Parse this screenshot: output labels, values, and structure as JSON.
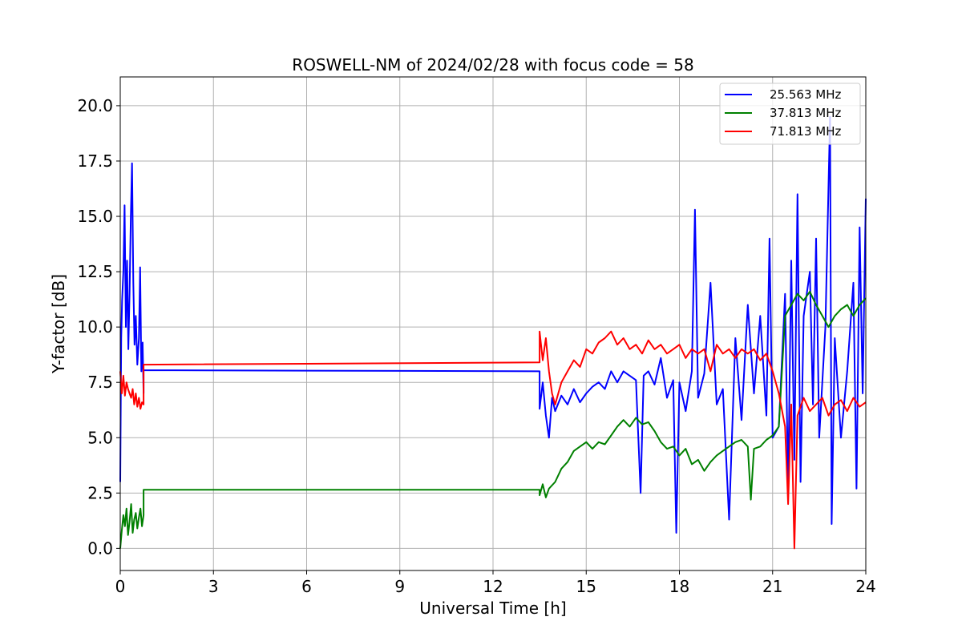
{
  "chart_data": {
    "type": "line",
    "title": "ROSWELL-NM of 2024/02/28 with focus code = 58",
    "xlabel": "Universal Time [h]",
    "ylabel": "Y-factor [dB]",
    "xlim": [
      0,
      24
    ],
    "ylim": [
      -1.0,
      21.3
    ],
    "xticks": [
      0,
      3,
      6,
      9,
      12,
      15,
      18,
      21,
      24
    ],
    "yticks": [
      0.0,
      2.5,
      5.0,
      7.5,
      10.0,
      12.5,
      15.0,
      17.5,
      20.0
    ],
    "xtick_labels": [
      "0",
      "3",
      "6",
      "9",
      "12",
      "15",
      "18",
      "21",
      "24"
    ],
    "ytick_labels": [
      "0.0",
      "2.5",
      "5.0",
      "7.5",
      "10.0",
      "12.5",
      "15.0",
      "17.5",
      "20.0"
    ],
    "grid": true,
    "legend_position": "top-right",
    "series": [
      {
        "name": "25.563 MHz",
        "color": "#0000ff",
        "points": [
          [
            0.0,
            3.0
          ],
          [
            0.03,
            9.5
          ],
          [
            0.06,
            11.2
          ],
          [
            0.1,
            12.5
          ],
          [
            0.14,
            15.5
          ],
          [
            0.18,
            10.0
          ],
          [
            0.22,
            13.0
          ],
          [
            0.26,
            9.0
          ],
          [
            0.3,
            11.5
          ],
          [
            0.34,
            15.0
          ],
          [
            0.38,
            17.4
          ],
          [
            0.42,
            12.0
          ],
          [
            0.46,
            9.2
          ],
          [
            0.5,
            10.5
          ],
          [
            0.55,
            8.3
          ],
          [
            0.6,
            9.5
          ],
          [
            0.64,
            12.7
          ],
          [
            0.68,
            8.0
          ],
          [
            0.72,
            9.3
          ],
          [
            0.75,
            7.0
          ],
          [
            0.75,
            8.05
          ],
          [
            13.5,
            8.0
          ],
          [
            13.5,
            6.3
          ],
          [
            13.6,
            7.5
          ],
          [
            13.7,
            6.0
          ],
          [
            13.8,
            5.0
          ],
          [
            13.9,
            6.8
          ],
          [
            14.0,
            6.2
          ],
          [
            14.2,
            6.9
          ],
          [
            14.4,
            6.5
          ],
          [
            14.6,
            7.2
          ],
          [
            14.8,
            6.6
          ],
          [
            15.0,
            7.0
          ],
          [
            15.2,
            7.3
          ],
          [
            15.4,
            7.5
          ],
          [
            15.6,
            7.2
          ],
          [
            15.8,
            8.0
          ],
          [
            16.0,
            7.5
          ],
          [
            16.2,
            8.0
          ],
          [
            16.4,
            7.8
          ],
          [
            16.6,
            7.6
          ],
          [
            16.75,
            2.5
          ],
          [
            16.85,
            7.8
          ],
          [
            17.0,
            8.0
          ],
          [
            17.2,
            7.4
          ],
          [
            17.4,
            8.6
          ],
          [
            17.6,
            6.8
          ],
          [
            17.8,
            7.6
          ],
          [
            17.9,
            0.7
          ],
          [
            18.0,
            7.5
          ],
          [
            18.2,
            6.2
          ],
          [
            18.4,
            8.0
          ],
          [
            18.5,
            15.3
          ],
          [
            18.6,
            6.8
          ],
          [
            18.8,
            7.9
          ],
          [
            19.0,
            12.0
          ],
          [
            19.2,
            6.5
          ],
          [
            19.4,
            7.2
          ],
          [
            19.6,
            1.3
          ],
          [
            19.8,
            9.5
          ],
          [
            20.0,
            5.8
          ],
          [
            20.2,
            11.0
          ],
          [
            20.4,
            7.0
          ],
          [
            20.6,
            10.5
          ],
          [
            20.8,
            6.0
          ],
          [
            20.9,
            14.0
          ],
          [
            21.0,
            5.0
          ],
          [
            21.2,
            5.5
          ],
          [
            21.4,
            11.5
          ],
          [
            21.5,
            2.7
          ],
          [
            21.6,
            13.0
          ],
          [
            21.7,
            4.0
          ],
          [
            21.8,
            16.0
          ],
          [
            21.9,
            3.0
          ],
          [
            22.0,
            10.5
          ],
          [
            22.2,
            12.5
          ],
          [
            22.3,
            6.5
          ],
          [
            22.4,
            14.0
          ],
          [
            22.5,
            5.0
          ],
          [
            22.7,
            10.0
          ],
          [
            22.85,
            19.5
          ],
          [
            22.9,
            1.1
          ],
          [
            23.0,
            9.5
          ],
          [
            23.2,
            5.0
          ],
          [
            23.4,
            8.0
          ],
          [
            23.6,
            12.0
          ],
          [
            23.7,
            2.7
          ],
          [
            23.8,
            14.5
          ],
          [
            23.9,
            7.0
          ],
          [
            24.0,
            15.8
          ]
        ]
      },
      {
        "name": "37.813 MHz",
        "color": "#008000",
        "points": [
          [
            0.0,
            0.0
          ],
          [
            0.05,
            0.8
          ],
          [
            0.1,
            1.5
          ],
          [
            0.15,
            1.0
          ],
          [
            0.2,
            1.8
          ],
          [
            0.25,
            0.6
          ],
          [
            0.3,
            1.2
          ],
          [
            0.35,
            2.0
          ],
          [
            0.4,
            0.7
          ],
          [
            0.45,
            1.3
          ],
          [
            0.5,
            1.6
          ],
          [
            0.55,
            0.9
          ],
          [
            0.6,
            1.4
          ],
          [
            0.65,
            1.8
          ],
          [
            0.7,
            1.0
          ],
          [
            0.75,
            1.5
          ],
          [
            0.75,
            2.65
          ],
          [
            13.5,
            2.65
          ],
          [
            13.5,
            2.4
          ],
          [
            13.6,
            2.9
          ],
          [
            13.7,
            2.3
          ],
          [
            13.8,
            2.7
          ],
          [
            14.0,
            3.0
          ],
          [
            14.2,
            3.6
          ],
          [
            14.4,
            3.9
          ],
          [
            14.6,
            4.4
          ],
          [
            14.8,
            4.6
          ],
          [
            15.0,
            4.8
          ],
          [
            15.2,
            4.5
          ],
          [
            15.4,
            4.8
          ],
          [
            15.6,
            4.7
          ],
          [
            15.8,
            5.1
          ],
          [
            16.0,
            5.5
          ],
          [
            16.2,
            5.8
          ],
          [
            16.4,
            5.5
          ],
          [
            16.6,
            5.9
          ],
          [
            16.8,
            5.6
          ],
          [
            17.0,
            5.7
          ],
          [
            17.2,
            5.3
          ],
          [
            17.4,
            4.8
          ],
          [
            17.6,
            4.5
          ],
          [
            17.8,
            4.6
          ],
          [
            18.0,
            4.2
          ],
          [
            18.2,
            4.5
          ],
          [
            18.4,
            3.8
          ],
          [
            18.6,
            4.0
          ],
          [
            18.8,
            3.5
          ],
          [
            19.0,
            3.9
          ],
          [
            19.2,
            4.2
          ],
          [
            19.4,
            4.4
          ],
          [
            19.6,
            4.6
          ],
          [
            19.8,
            4.8
          ],
          [
            20.0,
            4.9
          ],
          [
            20.2,
            4.6
          ],
          [
            20.3,
            2.2
          ],
          [
            20.4,
            4.5
          ],
          [
            20.6,
            4.6
          ],
          [
            20.8,
            4.9
          ],
          [
            21.0,
            5.1
          ],
          [
            21.2,
            5.5
          ],
          [
            21.4,
            10.5
          ],
          [
            21.6,
            11.0
          ],
          [
            21.8,
            11.5
          ],
          [
            22.0,
            11.2
          ],
          [
            22.2,
            11.6
          ],
          [
            22.4,
            11.0
          ],
          [
            22.6,
            10.5
          ],
          [
            22.8,
            10.0
          ],
          [
            23.0,
            10.5
          ],
          [
            23.2,
            10.8
          ],
          [
            23.4,
            11.0
          ],
          [
            23.6,
            10.5
          ],
          [
            23.8,
            11.0
          ],
          [
            24.0,
            11.3
          ]
        ]
      },
      {
        "name": "71.813 MHz",
        "color": "#ff0000",
        "points": [
          [
            0.0,
            8.0
          ],
          [
            0.05,
            7.0
          ],
          [
            0.1,
            7.8
          ],
          [
            0.15,
            6.9
          ],
          [
            0.2,
            7.5
          ],
          [
            0.25,
            7.2
          ],
          [
            0.3,
            7.0
          ],
          [
            0.35,
            6.8
          ],
          [
            0.4,
            7.2
          ],
          [
            0.45,
            6.5
          ],
          [
            0.5,
            7.0
          ],
          [
            0.55,
            6.4
          ],
          [
            0.6,
            6.8
          ],
          [
            0.65,
            6.3
          ],
          [
            0.7,
            6.6
          ],
          [
            0.75,
            6.5
          ],
          [
            0.75,
            8.3
          ],
          [
            13.5,
            8.4
          ],
          [
            13.5,
            9.8
          ],
          [
            13.6,
            8.5
          ],
          [
            13.7,
            9.5
          ],
          [
            13.8,
            8.0
          ],
          [
            13.9,
            7.0
          ],
          [
            14.0,
            6.5
          ],
          [
            14.2,
            7.5
          ],
          [
            14.4,
            8.0
          ],
          [
            14.6,
            8.5
          ],
          [
            14.8,
            8.2
          ],
          [
            15.0,
            9.0
          ],
          [
            15.2,
            8.8
          ],
          [
            15.4,
            9.3
          ],
          [
            15.6,
            9.5
          ],
          [
            15.8,
            9.8
          ],
          [
            16.0,
            9.2
          ],
          [
            16.2,
            9.5
          ],
          [
            16.4,
            9.0
          ],
          [
            16.6,
            9.2
          ],
          [
            16.8,
            8.8
          ],
          [
            17.0,
            9.4
          ],
          [
            17.2,
            9.0
          ],
          [
            17.4,
            9.2
          ],
          [
            17.6,
            8.8
          ],
          [
            17.8,
            9.0
          ],
          [
            18.0,
            9.2
          ],
          [
            18.2,
            8.6
          ],
          [
            18.4,
            9.0
          ],
          [
            18.6,
            8.8
          ],
          [
            18.8,
            9.0
          ],
          [
            19.0,
            8.0
          ],
          [
            19.2,
            9.2
          ],
          [
            19.4,
            8.8
          ],
          [
            19.6,
            9.0
          ],
          [
            19.8,
            8.6
          ],
          [
            20.0,
            9.0
          ],
          [
            20.2,
            8.8
          ],
          [
            20.4,
            9.0
          ],
          [
            20.6,
            8.5
          ],
          [
            20.8,
            8.8
          ],
          [
            21.0,
            8.0
          ],
          [
            21.2,
            7.0
          ],
          [
            21.4,
            5.5
          ],
          [
            21.5,
            2.0
          ],
          [
            21.6,
            6.5
          ],
          [
            21.7,
            0.0
          ],
          [
            21.8,
            6.0
          ],
          [
            22.0,
            6.8
          ],
          [
            22.2,
            6.2
          ],
          [
            22.4,
            6.5
          ],
          [
            22.6,
            6.8
          ],
          [
            22.8,
            6.0
          ],
          [
            23.0,
            6.5
          ],
          [
            23.2,
            6.7
          ],
          [
            23.4,
            6.2
          ],
          [
            23.6,
            6.8
          ],
          [
            23.8,
            6.4
          ],
          [
            24.0,
            6.6
          ]
        ]
      }
    ]
  }
}
